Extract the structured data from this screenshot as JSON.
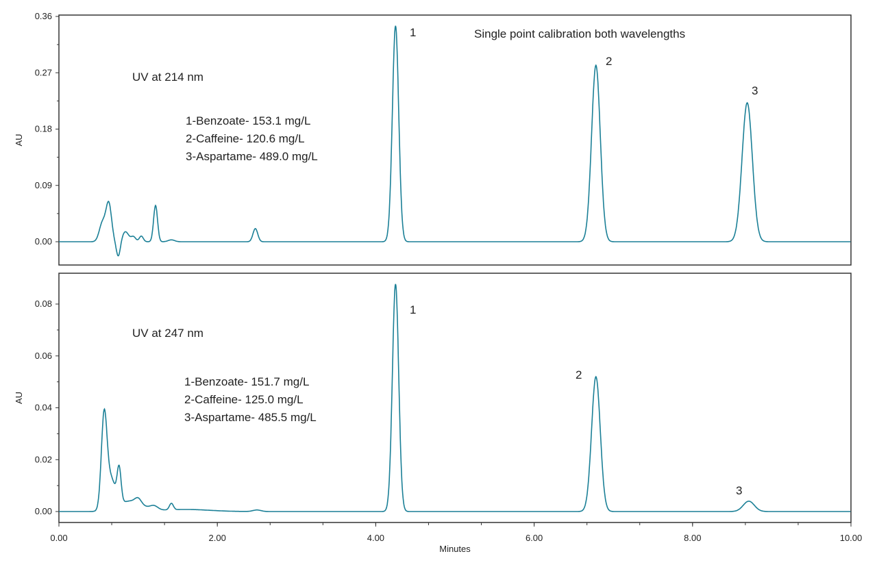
{
  "chart_data": [
    {
      "type": "line",
      "title": "",
      "annotation_title": "Single point calibration both wavelengths",
      "panel_label": "UV at 214 nm",
      "legend_lines": [
        "1-Benzoate- 153.1 mg/L",
        "2-Caffeine- 120.6 mg/L",
        "3-Aspartame- 489.0 mg/L"
      ],
      "ylabel": "AU",
      "ylim": [
        -0.04,
        0.36
      ],
      "yticks": [
        "0.00",
        "0.09",
        "0.18",
        "0.27",
        "0.36"
      ],
      "yvals": [
        0,
        0.09,
        0.18,
        0.27,
        0.36
      ],
      "color": "#1a7f96",
      "peaks": [
        {
          "label": "1",
          "t": 4.25,
          "h": 0.345,
          "w": 0.04
        },
        {
          "label": "2",
          "t": 6.78,
          "h": 0.282,
          "w": 0.055
        },
        {
          "label": "3",
          "t": 8.69,
          "h": 0.222,
          "w": 0.065
        }
      ],
      "minor_peaks": [
        [
          0.55,
          0.03,
          0.04
        ],
        [
          0.63,
          0.06,
          0.035
        ],
        [
          0.75,
          -0.024,
          0.025
        ],
        [
          0.84,
          0.016,
          0.04
        ],
        [
          0.94,
          0.008,
          0.03
        ],
        [
          1.04,
          0.009,
          0.025
        ],
        [
          1.22,
          0.058,
          0.025
        ],
        [
          1.42,
          0.003,
          0.04
        ],
        [
          2.48,
          0.021,
          0.03
        ]
      ]
    },
    {
      "type": "line",
      "panel_label": "UV at 247 nm",
      "legend_lines": [
        "1-Benzoate- 151.7 mg/L",
        "2-Caffeine- 125.0 mg/L",
        "3-Aspartame- 485.5 mg/L"
      ],
      "ylabel": "AU",
      "ylim": [
        -0.004,
        0.088
      ],
      "yticks": [
        "0.00",
        "0.02",
        "0.04",
        "0.06",
        "0.08"
      ],
      "yvals": [
        0,
        0.02,
        0.04,
        0.06,
        0.08
      ],
      "color": "#1a7f96",
      "peaks": [
        {
          "label": "1",
          "t": 4.25,
          "h": 0.0877,
          "w": 0.04
        },
        {
          "label": "2",
          "t": 6.78,
          "h": 0.052,
          "w": 0.055
        },
        {
          "label": "3",
          "t": 8.71,
          "h": 0.004,
          "w": 0.07
        }
      ],
      "minor_peaks": [
        [
          0.57,
          0.034,
          0.035
        ],
        [
          0.65,
          0.012,
          0.06
        ],
        [
          0.76,
          0.013,
          0.025
        ],
        [
          0.9,
          0.004,
          0.15
        ],
        [
          1.0,
          0.002,
          0.04
        ],
        [
          1.2,
          0.0015,
          0.05
        ],
        [
          1.42,
          0.0025,
          0.025
        ],
        [
          1.6,
          0.0008,
          0.3
        ],
        [
          2.5,
          0.0006,
          0.05
        ]
      ]
    }
  ],
  "xaxis": {
    "label": "Minutes",
    "xlim": [
      0,
      10
    ],
    "ticks": [
      "0.00",
      "2.00",
      "4.00",
      "6.00",
      "8.00",
      "10.00"
    ],
    "vals": [
      0,
      2,
      4,
      6,
      8,
      10
    ]
  }
}
